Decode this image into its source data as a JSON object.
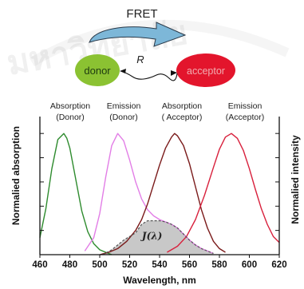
{
  "diagram": {
    "fret_label": "FRET",
    "donor_label": "donor",
    "acceptor_label": "acceptor",
    "distance_label": "R",
    "colors": {
      "donor": "#8bc232",
      "acceptor": "#e3152c",
      "arrow": "#7db7d8"
    }
  },
  "watermark": {
    "text": "มหาวิทยาลัย",
    "icon": "university-seal-watermark"
  },
  "chart_data": {
    "type": "line",
    "xlabel": "Wavelength, nm",
    "ylabel_left": "Normalied absorption",
    "ylabel_right": "Normalied intensity",
    "xlim": [
      460,
      620
    ],
    "ylim": [
      0,
      1.1
    ],
    "x_ticks": [
      460,
      480,
      500,
      520,
      540,
      560,
      580,
      600,
      620
    ],
    "grid": false,
    "overlap_label": "J(λ)",
    "overlap_color": "#c8c8c8",
    "series": [
      {
        "name": "Absorption (Donor)",
        "name_lines": [
          "Absorption",
          "(Donor)"
        ],
        "color": "#2e8b2e",
        "dash": false,
        "x": [
          460,
          464,
          468,
          472,
          476,
          478,
          480,
          484,
          488,
          492,
          496,
          500,
          504,
          508
        ],
        "y": [
          0.14,
          0.38,
          0.71,
          0.95,
          1.0,
          0.96,
          0.88,
          0.62,
          0.36,
          0.19,
          0.09,
          0.04,
          0.02,
          0.0
        ]
      },
      {
        "name": "Emission (Donor)",
        "name_lines": [
          "Emission",
          "(Donor)"
        ],
        "color": "#e27ee6",
        "dash": false,
        "x": [
          490,
          496,
          500,
          504,
          508,
          512,
          516,
          520,
          524,
          528,
          532,
          536,
          540,
          544,
          548,
          552,
          556,
          560,
          564,
          568,
          572,
          576
        ],
        "y": [
          0.03,
          0.14,
          0.34,
          0.64,
          0.9,
          1.0,
          0.94,
          0.78,
          0.6,
          0.46,
          0.37,
          0.32,
          0.29,
          0.27,
          0.25,
          0.22,
          0.17,
          0.12,
          0.08,
          0.05,
          0.03,
          0.01
        ]
      },
      {
        "name": "Absorption (Acceptor)",
        "name_lines": [
          "Absorption",
          "( Acceptor)"
        ],
        "color": "#7a1a1a",
        "dash": false,
        "x": [
          500,
          506,
          512,
          518,
          524,
          528,
          532,
          536,
          540,
          544,
          548,
          550,
          552,
          556,
          560,
          564,
          568,
          572,
          576,
          580,
          584
        ],
        "y": [
          0.0,
          0.02,
          0.05,
          0.11,
          0.2,
          0.29,
          0.42,
          0.58,
          0.74,
          0.88,
          0.97,
          1.0,
          0.98,
          0.9,
          0.75,
          0.56,
          0.37,
          0.22,
          0.11,
          0.05,
          0.02
        ]
      },
      {
        "name": "Emission (Acceptor)",
        "name_lines": [
          "Emission",
          "(Acceptor)"
        ],
        "color": "#d8203c",
        "dash": false,
        "x": [
          545,
          552,
          558,
          564,
          570,
          576,
          580,
          584,
          588,
          592,
          596,
          600,
          604,
          608,
          612,
          616,
          620
        ],
        "y": [
          0.02,
          0.07,
          0.15,
          0.29,
          0.49,
          0.72,
          0.87,
          0.97,
          1.0,
          0.96,
          0.86,
          0.71,
          0.54,
          0.38,
          0.25,
          0.15,
          0.1
        ]
      },
      {
        "name": "",
        "color": "#555555",
        "dash": true,
        "x": [
          502,
          508,
          512,
          516,
          520,
          524,
          528,
          532,
          536,
          540,
          544,
          548,
          552,
          556,
          560,
          564,
          568,
          572,
          576
        ],
        "y": [
          0.0,
          0.04,
          0.08,
          0.12,
          0.15,
          0.18,
          0.25,
          0.28,
          0.28,
          0.28,
          0.27,
          0.25,
          0.22,
          0.17,
          0.12,
          0.08,
          0.05,
          0.03,
          0.01
        ]
      }
    ]
  }
}
